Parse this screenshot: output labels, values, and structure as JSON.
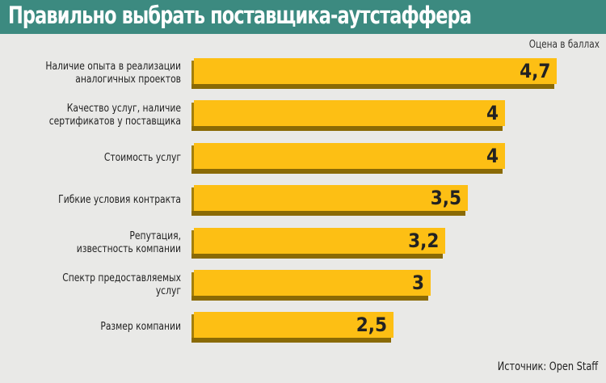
{
  "chart_data": {
    "type": "bar",
    "orientation": "horizontal",
    "title": "Правильно выбрать поставщика-аутстаффера",
    "unit_label": "Оцена в баллах",
    "categories": [
      "Наличие опыта в реализации аналогичных проектов",
      "Качество услуг, наличие сертификатов у поставщика",
      "Стоимость услуг",
      "Гибкие условия контракта",
      "Репутация, известность компании",
      "Спектр предоставляемых услуг",
      "Размер компании"
    ],
    "label_lines": [
      [
        "Наличие опыта в реализации",
        "аналогичных проектов"
      ],
      [
        "Качество услуг, наличие",
        "сертификатов у поставщика"
      ],
      [
        "Стоимость услуг"
      ],
      [
        "Гибкие условия контракта"
      ],
      [
        "Репутация,",
        "известность компании"
      ],
      [
        "Спектр предоставляемых",
        "услуг"
      ],
      [
        "Размер компании"
      ]
    ],
    "values": [
      4.7,
      4,
      4,
      3.5,
      3.2,
      3,
      2.5
    ],
    "value_labels": [
      "4,7",
      "4",
      "4",
      "3,5",
      "3,2",
      "3",
      "2,5"
    ],
    "source": "Источник: Open Staff",
    "colors": {
      "bar": "#fdbf14",
      "header": "#3c8a80"
    }
  }
}
